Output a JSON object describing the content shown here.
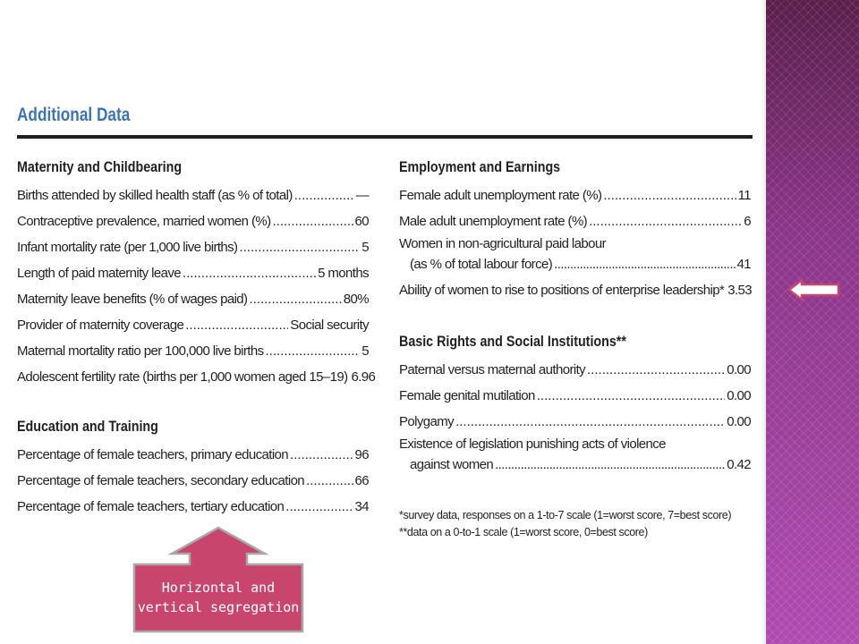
{
  "document": {
    "title": "Additional Data",
    "sections_left": [
      {
        "heading": "Maternity and Childbearing",
        "rows": [
          {
            "label": "Births attended by skilled health staff (as % of total)",
            "value": "—"
          },
          {
            "label": "Contraceptive prevalence, married women (%)",
            "value": "60"
          },
          {
            "label": "Infant mortality rate (per 1,000 live births)",
            "value": "5"
          },
          {
            "label": "Length of paid maternity leave",
            "value": "5 months"
          },
          {
            "label": "Maternity leave benefits (% of wages paid)",
            "value": "80%"
          },
          {
            "label": "Provider of maternity coverage",
            "value": "Social security"
          },
          {
            "label": "Maternal mortality ratio per 100,000 live births",
            "value": "5"
          },
          {
            "label": "Adolescent fertility rate (births per 1,000 women aged 15–19)",
            "value": "6.96"
          }
        ]
      },
      {
        "heading": "Education and Training",
        "rows": [
          {
            "label": "Percentage of female teachers, primary education",
            "value": "96"
          },
          {
            "label": "Percentage of female teachers, secondary education",
            "value": "66"
          },
          {
            "label": "Percentage of female teachers, tertiary education",
            "value": "34"
          }
        ]
      }
    ],
    "sections_right": [
      {
        "heading": "Employment and Earnings",
        "rows": [
          {
            "label": "Female adult unemployment rate (%)",
            "value": "11"
          },
          {
            "label": "Male adult unemployment rate (%)",
            "value": "6"
          },
          {
            "label": "Women in non-agricultural paid labour",
            "label2": "(as % of total labour force)",
            "value": "41"
          },
          {
            "label": "Ability of women to rise to positions of enterprise leadership*",
            "value": "3.53"
          }
        ]
      },
      {
        "heading": "Basic Rights and Social Institutions**",
        "rows": [
          {
            "label": "Paternal versus maternal authority",
            "value": "0.00"
          },
          {
            "label": "Female genital mutilation",
            "value": "0.00"
          },
          {
            "label": "Polygamy",
            "value": "0.00"
          },
          {
            "label": "Existence of legislation punishing acts of violence",
            "label2": "against women",
            "value": "0.42"
          }
        ]
      }
    ],
    "footnotes": [
      "*survey data, responses on a 1-to-7 scale (1=worst score, 7=best score)",
      "**data on a 0-to-1 scale (1=worst score, 0=best score)"
    ]
  },
  "callout": {
    "line1": "Horizontal and",
    "line2": "vertical segregation",
    "fill_color": "#c8456e",
    "border_color": "#a8a8a8"
  },
  "sidebar": {
    "back_arrow_icon": "left-arrow-icon",
    "color": "#9b3b9a"
  }
}
